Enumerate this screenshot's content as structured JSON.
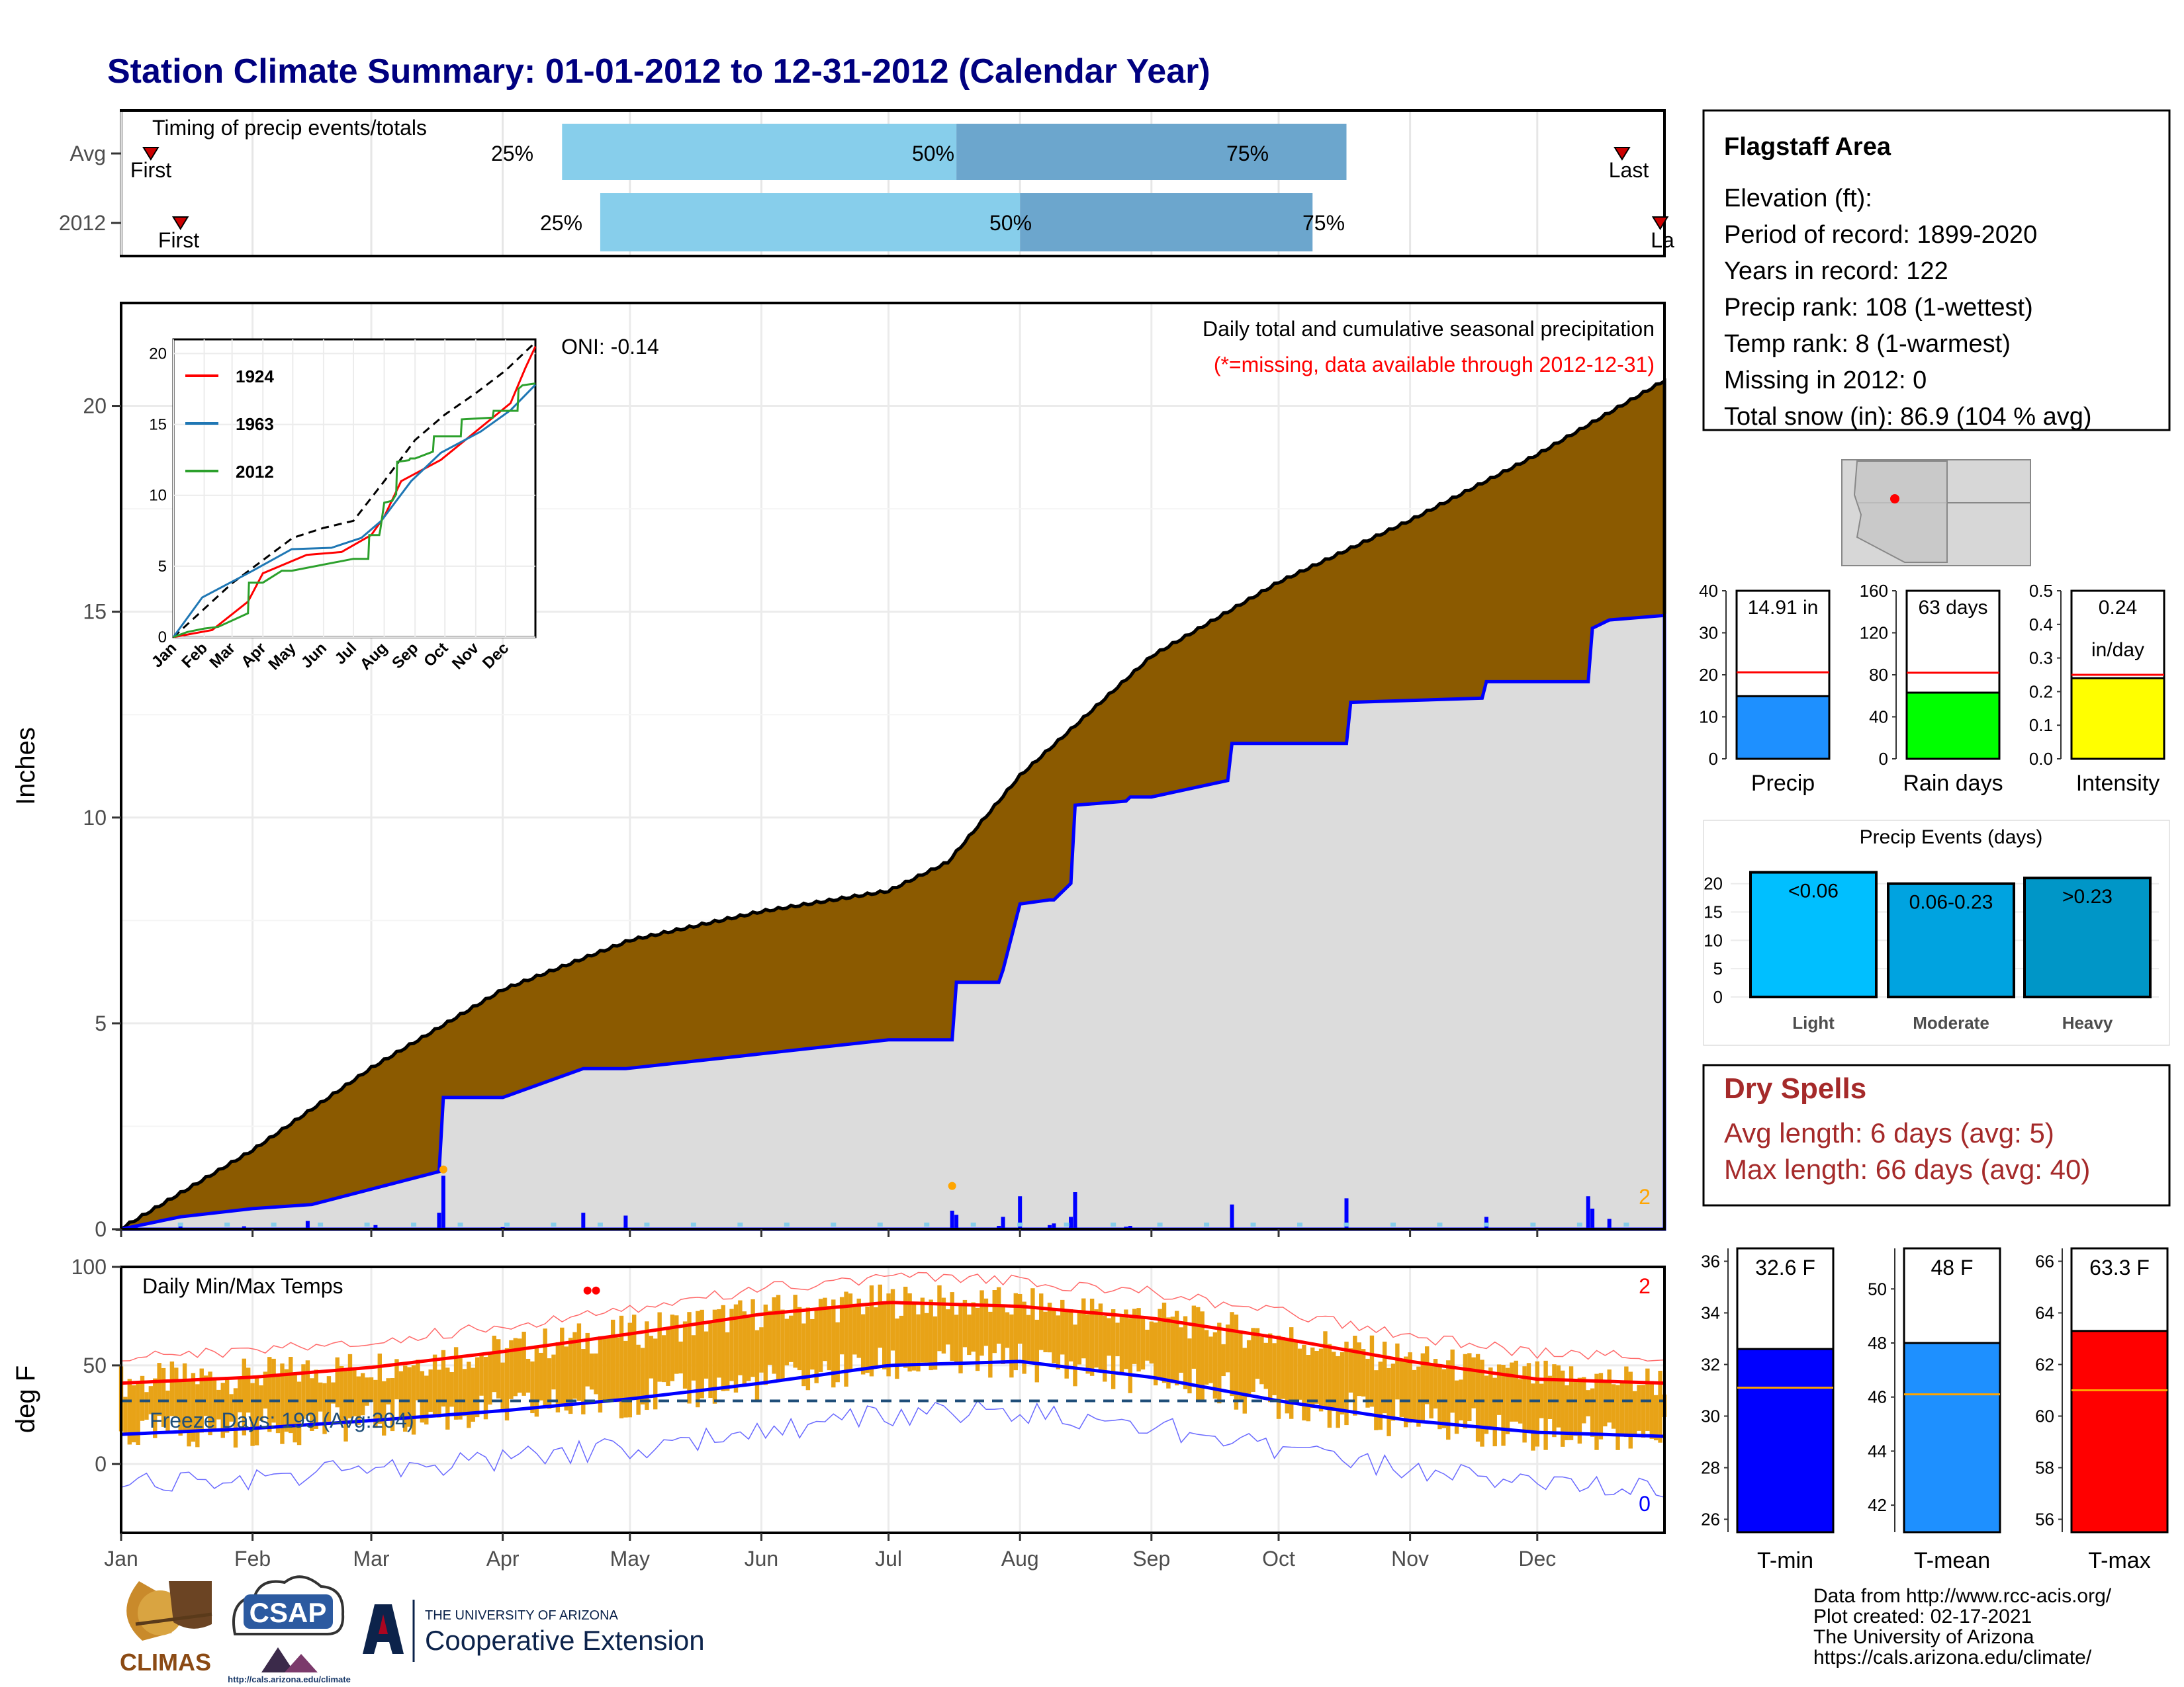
{
  "title": "Station Climate Summary: 01-01-2012 to 12-31-2012 (Calendar Year)",
  "colors": {
    "title": "#000080",
    "brown_fill": "#8B5A00",
    "gray_fill": "#DCDCDC",
    "blue": "#0000FF",
    "light_blue": "#87CEEB",
    "steel_blue": "#6CA6CD",
    "red": "#FF0000",
    "orange_bars": "#E8A317",
    "dry_spells": "#A52A2A"
  },
  "timing": {
    "label": "Timing of precip events/totals",
    "rows": [
      "Avg",
      "2012"
    ],
    "avg": {
      "first_label": "First",
      "last_label": "Last",
      "p25": "25%",
      "p50": "50%",
      "p75": "75%",
      "first_doy": 8,
      "q25_doy": 105,
      "q50_doy": 198,
      "q75_doy": 290,
      "last_doy": 355
    },
    "y2012": {
      "first_label": "First",
      "last_label": "La",
      "p25": "25%",
      "p50": "50%",
      "p75": "75%",
      "first_doy": 15,
      "q25_doy": 114,
      "q50_doy": 213,
      "q75_doy": 282,
      "last_doy": 364
    }
  },
  "main": {
    "ylabel": "Inches",
    "heading": "Daily total and cumulative seasonal precipitation",
    "missing_note": "(*=missing, data available through 2012-12-31)",
    "oni": "ONI: -0.14",
    "count_label": "2",
    "yticks": [
      "0",
      "5",
      "10",
      "15",
      "20"
    ]
  },
  "inset": {
    "legend": [
      "1924",
      "1963",
      "2012"
    ],
    "yticks": [
      "0",
      "5",
      "10",
      "15",
      "20"
    ],
    "months": [
      "Jan",
      "Feb",
      "Mar",
      "Apr",
      "May",
      "Jun",
      "Jul",
      "Aug",
      "Sep",
      "Oct",
      "Nov",
      "Dec"
    ]
  },
  "temps": {
    "ylabel": "deg F",
    "heading": "Daily Min/Max Temps",
    "freeze": "Freeze Days: 199 (Avg:204)",
    "count_max": "2",
    "count_min": "0",
    "yticks": [
      "0",
      "50",
      "100"
    ],
    "months": [
      "Jan",
      "Feb",
      "Mar",
      "Apr",
      "May",
      "Jun",
      "Jul",
      "Aug",
      "Sep",
      "Oct",
      "Nov",
      "Dec"
    ]
  },
  "info": {
    "station": "Flagstaff Area",
    "lines": [
      "Elevation (ft):",
      "Period of record: 1899-2020",
      "Years in record: 122",
      "Precip rank: 108 (1-wettest)",
      "Temp rank: 8 (1-warmest)",
      "Missing in 2012: 0",
      "Total snow (in): 86.9 (104 % avg)"
    ]
  },
  "small_bars": {
    "precip": {
      "label": "Precip",
      "value_text": "14.91 in",
      "value": 14.91,
      "avg": 20.6,
      "ymax": 40,
      "ticks": [
        "0",
        "10",
        "20",
        "30",
        "40"
      ]
    },
    "rain_days": {
      "label": "Rain days",
      "value_text": "63 days",
      "value": 63,
      "avg": 82,
      "ymax": 160,
      "ticks": [
        "0",
        "40",
        "80",
        "120",
        "160"
      ]
    },
    "intensity": {
      "label": "Intensity",
      "value_text": "0.24",
      "value_text2": "in/day",
      "value": 0.24,
      "avg": 0.25,
      "ymax": 0.5,
      "ticks": [
        "0.0",
        "0.1",
        "0.2",
        "0.3",
        "0.4",
        "0.5"
      ]
    }
  },
  "events": {
    "title": "Precip Events (days)",
    "categories": [
      "Light",
      "Moderate",
      "Heavy"
    ],
    "bar_labels": [
      "<0.06",
      "0.06-0.23",
      ">0.23"
    ],
    "values": [
      22,
      20,
      21
    ],
    "ticks": [
      "0",
      "5",
      "10",
      "15",
      "20"
    ]
  },
  "dry": {
    "title": "Dry Spells",
    "avg_line": "Avg length: 6 days (avg: 5)",
    "max_line": "Max length: 66 days (avg: 40)"
  },
  "temp_bars": {
    "tmin": {
      "label": "T-min",
      "value_text": "32.6 F",
      "value": 32.6,
      "avg": 31.1,
      "ticks": [
        "26",
        "28",
        "30",
        "32",
        "34",
        "36"
      ]
    },
    "tmean": {
      "label": "T-mean",
      "value_text": "48 F",
      "value": 48.0,
      "avg": 46.1,
      "ticks": [
        "42",
        "44",
        "46",
        "48",
        "50"
      ]
    },
    "tmax": {
      "label": "T-max",
      "value_text": "63.3 F",
      "value": 63.3,
      "avg": 61.0,
      "ticks": [
        "56",
        "58",
        "60",
        "62",
        "64",
        "66"
      ]
    }
  },
  "footer": {
    "lines": [
      "Data from http://www.rcc-acis.org/",
      "Plot created: 02-17-2021",
      "The University of Arizona",
      "https://cals.arizona.edu/climate/"
    ],
    "climas": "CLIMAS",
    "csap": "CSAP",
    "csap_url": "http://cals.arizona.edu/climate",
    "ua_line1": "THE UNIVERSITY OF ARIZONA",
    "ua_line2": "Cooperative Extension"
  },
  "chart_data": [
    {
      "type": "area",
      "title": "Daily total and cumulative seasonal precipitation",
      "ylabel": "Inches",
      "ylim": [
        0,
        22.5
      ],
      "x_unit": "day of year",
      "series": [
        {
          "name": "Avg",
          "x": [
            1,
            32,
            60,
            91,
            121,
            152,
            182,
            196,
            213,
            244,
            274,
            305,
            335,
            365
          ],
          "values": [
            0,
            1.9,
            3.9,
            5.8,
            7.0,
            7.7,
            8.2,
            8.9,
            11.0,
            13.9,
            15.7,
            17.2,
            18.8,
            20.6
          ]
        },
        {
          "name": "2012",
          "x": [
            1,
            15,
            32,
            46,
            76,
            77,
            91,
            110,
            120,
            182,
            197,
            198,
            208,
            209,
            213,
            220,
            221,
            225,
            226,
            238,
            239,
            244,
            262,
            263,
            290,
            291,
            322,
            323,
            347,
            348,
            352,
            365
          ],
          "values": [
            0,
            0.3,
            0.5,
            0.6,
            1.4,
            3.2,
            3.2,
            3.9,
            3.9,
            4.6,
            4.6,
            6.0,
            6.0,
            6.3,
            7.9,
            8.0,
            8.0,
            8.4,
            10.3,
            10.4,
            10.5,
            10.5,
            10.9,
            11.8,
            11.8,
            12.8,
            12.9,
            13.3,
            13.3,
            14.6,
            14.8,
            14.91
          ]
        }
      ]
    },
    {
      "type": "line",
      "title": "Daily Min/Max Temps",
      "ylabel": "deg F",
      "ylim": [
        -35,
        100
      ],
      "x_unit": "day of year",
      "series": [
        {
          "name": "Avg max",
          "x": [
            1,
            32,
            60,
            91,
            121,
            152,
            182,
            213,
            244,
            274,
            305,
            335,
            365
          ],
          "values": [
            41,
            44,
            49,
            57,
            66,
            76,
            82,
            80,
            74,
            64,
            52,
            43,
            41
          ]
        },
        {
          "name": "Avg min",
          "x": [
            1,
            32,
            60,
            91,
            121,
            152,
            182,
            213,
            244,
            274,
            305,
            335,
            365
          ],
          "values": [
            15,
            18,
            22,
            27,
            33,
            41,
            50,
            52,
            44,
            32,
            22,
            16,
            14
          ]
        },
        {
          "name": "Freeze",
          "x": [
            1,
            365
          ],
          "values": [
            32,
            32
          ]
        }
      ]
    }
  ]
}
